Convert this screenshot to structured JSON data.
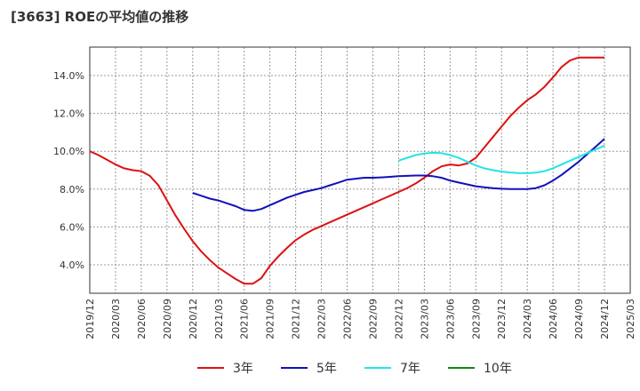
{
  "chart_data": {
    "type": "line",
    "title": "[3663]  ROEの平均値の推移",
    "xlabel": "",
    "ylabel": "",
    "ylim": [
      2.5,
      15.5
    ],
    "grid": true,
    "yticks": [
      4.0,
      6.0,
      8.0,
      10.0,
      12.0,
      14.0
    ],
    "ytick_labels": [
      "4.0%",
      "6.0%",
      "8.0%",
      "10.0%",
      "12.0%",
      "14.0%"
    ],
    "xticks": [
      "2019/12",
      "2020/03",
      "2020/06",
      "2020/09",
      "2020/12",
      "2021/03",
      "2021/06",
      "2021/09",
      "2021/12",
      "2022/03",
      "2022/06",
      "2022/09",
      "2022/12",
      "2023/03",
      "2023/06",
      "2023/09",
      "2023/12",
      "2024/03",
      "2024/06",
      "2024/09",
      "2024/12",
      "2025/03"
    ],
    "x_unit": "month index from 2019/12",
    "legend_position": "bottom",
    "series": [
      {
        "name": "3年",
        "color": "#dd1111",
        "x": [
          0,
          1,
          2,
          3,
          4,
          5,
          6,
          7,
          8,
          9,
          10,
          11,
          12,
          13,
          14,
          15,
          16,
          17,
          18,
          19,
          20,
          21,
          22,
          23,
          24,
          25,
          26,
          27,
          28,
          29,
          30,
          31,
          32,
          33,
          34,
          35,
          36,
          37,
          38,
          39,
          40,
          41,
          42,
          43,
          44,
          45,
          46,
          47,
          48,
          49,
          50,
          51,
          52,
          53,
          54,
          55,
          56,
          57,
          58,
          59,
          60
        ],
        "values": [
          10.0,
          9.8,
          9.55,
          9.3,
          9.1,
          9.0,
          8.95,
          8.7,
          8.2,
          7.4,
          6.6,
          5.9,
          5.25,
          4.7,
          4.25,
          3.85,
          3.55,
          3.25,
          3.0,
          3.0,
          3.3,
          3.95,
          4.45,
          4.9,
          5.3,
          5.6,
          5.85,
          6.05,
          6.25,
          6.45,
          6.65,
          6.85,
          7.05,
          7.25,
          7.45,
          7.65,
          7.85,
          8.05,
          8.3,
          8.6,
          8.95,
          9.2,
          9.3,
          9.25,
          9.35,
          9.65,
          10.2,
          10.75,
          11.3,
          11.85,
          12.3,
          12.7,
          13.0,
          13.4,
          13.9,
          14.45,
          14.8,
          14.95,
          14.95,
          14.95,
          14.95
        ]
      },
      {
        "name": "5年",
        "color": "#1111bb",
        "x": [
          12,
          13,
          14,
          15,
          16,
          17,
          18,
          19,
          20,
          21,
          22,
          23,
          24,
          25,
          26,
          27,
          28,
          29,
          30,
          31,
          32,
          33,
          34,
          35,
          36,
          37,
          38,
          39,
          40,
          41,
          42,
          43,
          44,
          45,
          46,
          47,
          48,
          49,
          50,
          51,
          52,
          53,
          54,
          55,
          56,
          57,
          58,
          59,
          60
        ],
        "values": [
          7.8,
          7.65,
          7.5,
          7.4,
          7.25,
          7.1,
          6.9,
          6.85,
          6.95,
          7.15,
          7.35,
          7.55,
          7.7,
          7.85,
          7.95,
          8.05,
          8.2,
          8.35,
          8.5,
          8.55,
          8.6,
          8.6,
          8.62,
          8.65,
          8.68,
          8.7,
          8.72,
          8.72,
          8.68,
          8.6,
          8.45,
          8.35,
          8.25,
          8.15,
          8.1,
          8.05,
          8.02,
          8.0,
          8.0,
          8.0,
          8.05,
          8.2,
          8.45,
          8.75,
          9.1,
          9.45,
          9.85,
          10.25,
          10.65
        ]
      },
      {
        "name": "7年",
        "color": "#22e5e5",
        "x": [
          36,
          37,
          38,
          39,
          40,
          41,
          42,
          43,
          44,
          45,
          46,
          47,
          48,
          49,
          50,
          51,
          52,
          53,
          54,
          55,
          56,
          57,
          58,
          59,
          60
        ],
        "values": [
          9.5,
          9.65,
          9.8,
          9.88,
          9.92,
          9.9,
          9.8,
          9.65,
          9.45,
          9.25,
          9.1,
          9.0,
          8.93,
          8.88,
          8.85,
          8.84,
          8.87,
          8.95,
          9.1,
          9.3,
          9.5,
          9.7,
          9.9,
          10.1,
          10.3
        ]
      },
      {
        "name": "10年",
        "color": "#118811",
        "x": [],
        "values": []
      }
    ]
  }
}
